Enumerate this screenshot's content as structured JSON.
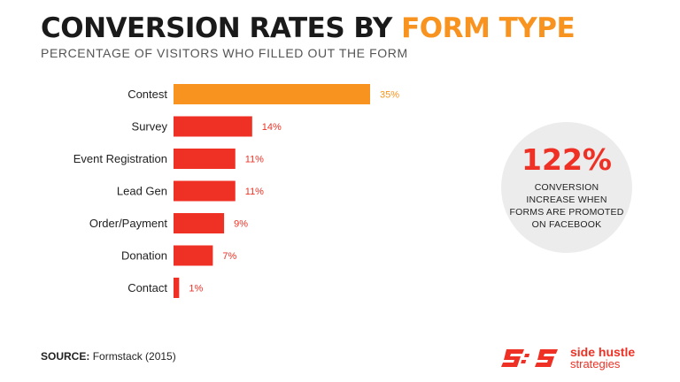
{
  "header": {
    "title_main": "CONVERSION RATES BY ",
    "title_accent": "FORM TYPE",
    "subtitle": "PERCENTAGE OF VISITORS WHO FILLED OUT THE FORM"
  },
  "chart_data": {
    "type": "bar",
    "orientation": "horizontal",
    "categories": [
      "Contest",
      "Survey",
      "Event Registration",
      "Lead Gen",
      "Order/Payment",
      "Donation",
      "Contact"
    ],
    "values": [
      35,
      14,
      11,
      11,
      9,
      7,
      1
    ],
    "value_labels": [
      "35%",
      "14%",
      "11%",
      "11%",
      "9%",
      "7%",
      "1%"
    ],
    "unit": "%",
    "xlim": [
      0,
      35
    ],
    "grid": false,
    "highlight_color": "#f7931e",
    "bar_color": "#ef3125"
  },
  "callout": {
    "value": "122%",
    "caption": "CONVERSION INCREASE WHEN FORMS ARE PROMOTED ON FACEBOOK"
  },
  "source": {
    "label": "SOURCE:",
    "text": "Formstack (2015)"
  },
  "logo": {
    "line1": "side hustle",
    "line2": "strategies",
    "color": "#ef3125"
  }
}
